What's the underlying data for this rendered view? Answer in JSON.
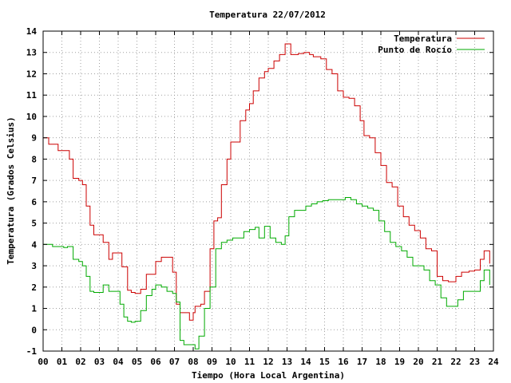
{
  "chart_data": {
    "type": "line",
    "title": "Temperatura 22/07/2012",
    "xlabel": "Tiempo (Hora Local Argentina)",
    "ylabel": "Temperatura (Grados Celsius)",
    "xlim": [
      0,
      24
    ],
    "ylim": [
      -1,
      14
    ],
    "x_ticks": [
      "00",
      "01",
      "02",
      "03",
      "04",
      "05",
      "06",
      "07",
      "08",
      "09",
      "10",
      "11",
      "12",
      "13",
      "14",
      "15",
      "16",
      "17",
      "18",
      "19",
      "20",
      "21",
      "22",
      "23",
      "24"
    ],
    "y_ticks": [
      "-1",
      "0",
      "1",
      "2",
      "3",
      "4",
      "5",
      "6",
      "7",
      "8",
      "9",
      "10",
      "11",
      "12",
      "13",
      "14"
    ],
    "grid": true,
    "legend_position": "top-right",
    "series": [
      {
        "name": "Temperatura",
        "color": "#cc0000",
        "x": [
          0.0,
          0.3,
          0.5,
          0.8,
          1.1,
          1.3,
          1.4,
          1.6,
          1.9,
          2.1,
          2.3,
          2.5,
          2.7,
          3.0,
          3.2,
          3.5,
          3.7,
          4.0,
          4.2,
          4.5,
          4.7,
          4.9,
          5.2,
          5.5,
          5.8,
          6.0,
          6.3,
          6.6,
          6.9,
          7.1,
          7.3,
          7.5,
          7.8,
          8.0,
          8.1,
          8.4,
          8.6,
          8.9,
          9.1,
          9.3,
          9.5,
          9.8,
          10.0,
          10.2,
          10.5,
          10.8,
          11.0,
          11.2,
          11.5,
          11.8,
          12.0,
          12.3,
          12.6,
          12.9,
          13.2,
          13.45,
          13.6,
          13.9,
          14.2,
          14.4,
          14.8,
          15.1,
          15.4,
          15.7,
          16.0,
          16.3,
          16.6,
          16.9,
          17.1,
          17.4,
          17.7,
          18.0,
          18.3,
          18.6,
          18.9,
          19.2,
          19.5,
          19.8,
          20.1,
          20.4,
          20.7,
          21.0,
          21.3,
          21.6,
          22.0,
          22.3,
          22.7,
          23.0,
          23.3,
          23.5,
          23.8
        ],
        "values": [
          9.0,
          8.7,
          8.7,
          8.4,
          8.4,
          8.4,
          8.0,
          7.1,
          7.0,
          6.8,
          5.8,
          4.9,
          4.45,
          4.45,
          4.1,
          3.3,
          3.6,
          3.6,
          2.95,
          1.85,
          1.75,
          1.7,
          1.9,
          2.6,
          2.6,
          3.2,
          3.4,
          3.4,
          2.7,
          1.2,
          0.8,
          0.8,
          0.45,
          0.8,
          1.1,
          1.2,
          1.8,
          3.8,
          5.1,
          5.25,
          6.8,
          8.0,
          8.8,
          8.8,
          9.8,
          10.3,
          10.6,
          11.2,
          11.8,
          12.1,
          12.25,
          12.6,
          12.9,
          13.4,
          12.9,
          12.9,
          12.95,
          13.0,
          12.9,
          12.8,
          12.7,
          12.2,
          12.0,
          11.2,
          10.9,
          10.85,
          10.5,
          9.8,
          9.1,
          9.0,
          8.3,
          7.7,
          6.9,
          6.7,
          5.8,
          5.3,
          4.9,
          4.65,
          4.3,
          3.8,
          3.7,
          2.5,
          2.3,
          2.25,
          2.5,
          2.7,
          2.75,
          2.8,
          3.3,
          3.7,
          3.1
        ]
      },
      {
        "name": "Punto de Rocío",
        "color": "#00aa00",
        "x": [
          0.0,
          0.3,
          0.5,
          0.8,
          1.1,
          1.3,
          1.6,
          1.9,
          2.1,
          2.3,
          2.5,
          2.7,
          3.0,
          3.2,
          3.5,
          3.8,
          4.1,
          4.3,
          4.5,
          4.7,
          4.9,
          5.2,
          5.5,
          5.8,
          6.0,
          6.3,
          6.6,
          6.9,
          7.1,
          7.3,
          7.5,
          7.8,
          8.1,
          8.3,
          8.6,
          8.9,
          9.2,
          9.5,
          9.8,
          10.1,
          10.4,
          10.7,
          11.0,
          11.3,
          11.5,
          11.8,
          12.1,
          12.4,
          12.7,
          12.9,
          13.1,
          13.4,
          13.7,
          14.0,
          14.3,
          14.6,
          14.9,
          15.2,
          15.5,
          15.8,
          16.1,
          16.4,
          16.7,
          17.0,
          17.3,
          17.6,
          17.9,
          18.2,
          18.5,
          18.8,
          19.1,
          19.4,
          19.7,
          20.0,
          20.3,
          20.6,
          20.9,
          21.2,
          21.5,
          21.8,
          22.1,
          22.4,
          22.7,
          23.0,
          23.3,
          23.5,
          23.8
        ],
        "values": [
          4.0,
          4.0,
          3.9,
          3.9,
          3.85,
          3.9,
          3.3,
          3.2,
          3.0,
          2.5,
          1.8,
          1.75,
          1.75,
          2.1,
          1.8,
          1.8,
          1.2,
          0.6,
          0.4,
          0.35,
          0.4,
          0.9,
          1.6,
          1.9,
          2.1,
          2.0,
          1.8,
          1.7,
          1.3,
          -0.5,
          -0.7,
          -0.7,
          -0.9,
          -0.3,
          1.0,
          2.0,
          3.8,
          4.1,
          4.2,
          4.3,
          4.3,
          4.6,
          4.7,
          4.8,
          4.3,
          4.85,
          4.3,
          4.1,
          4.0,
          4.4,
          5.3,
          5.6,
          5.6,
          5.8,
          5.9,
          6.0,
          6.05,
          6.1,
          6.1,
          6.1,
          6.2,
          6.1,
          5.9,
          5.8,
          5.7,
          5.6,
          5.1,
          4.6,
          4.1,
          3.9,
          3.7,
          3.4,
          3.0,
          3.0,
          2.8,
          2.3,
          2.1,
          1.5,
          1.1,
          1.1,
          1.4,
          1.8,
          1.8,
          1.8,
          2.3,
          2.8,
          2.1
        ]
      }
    ]
  }
}
